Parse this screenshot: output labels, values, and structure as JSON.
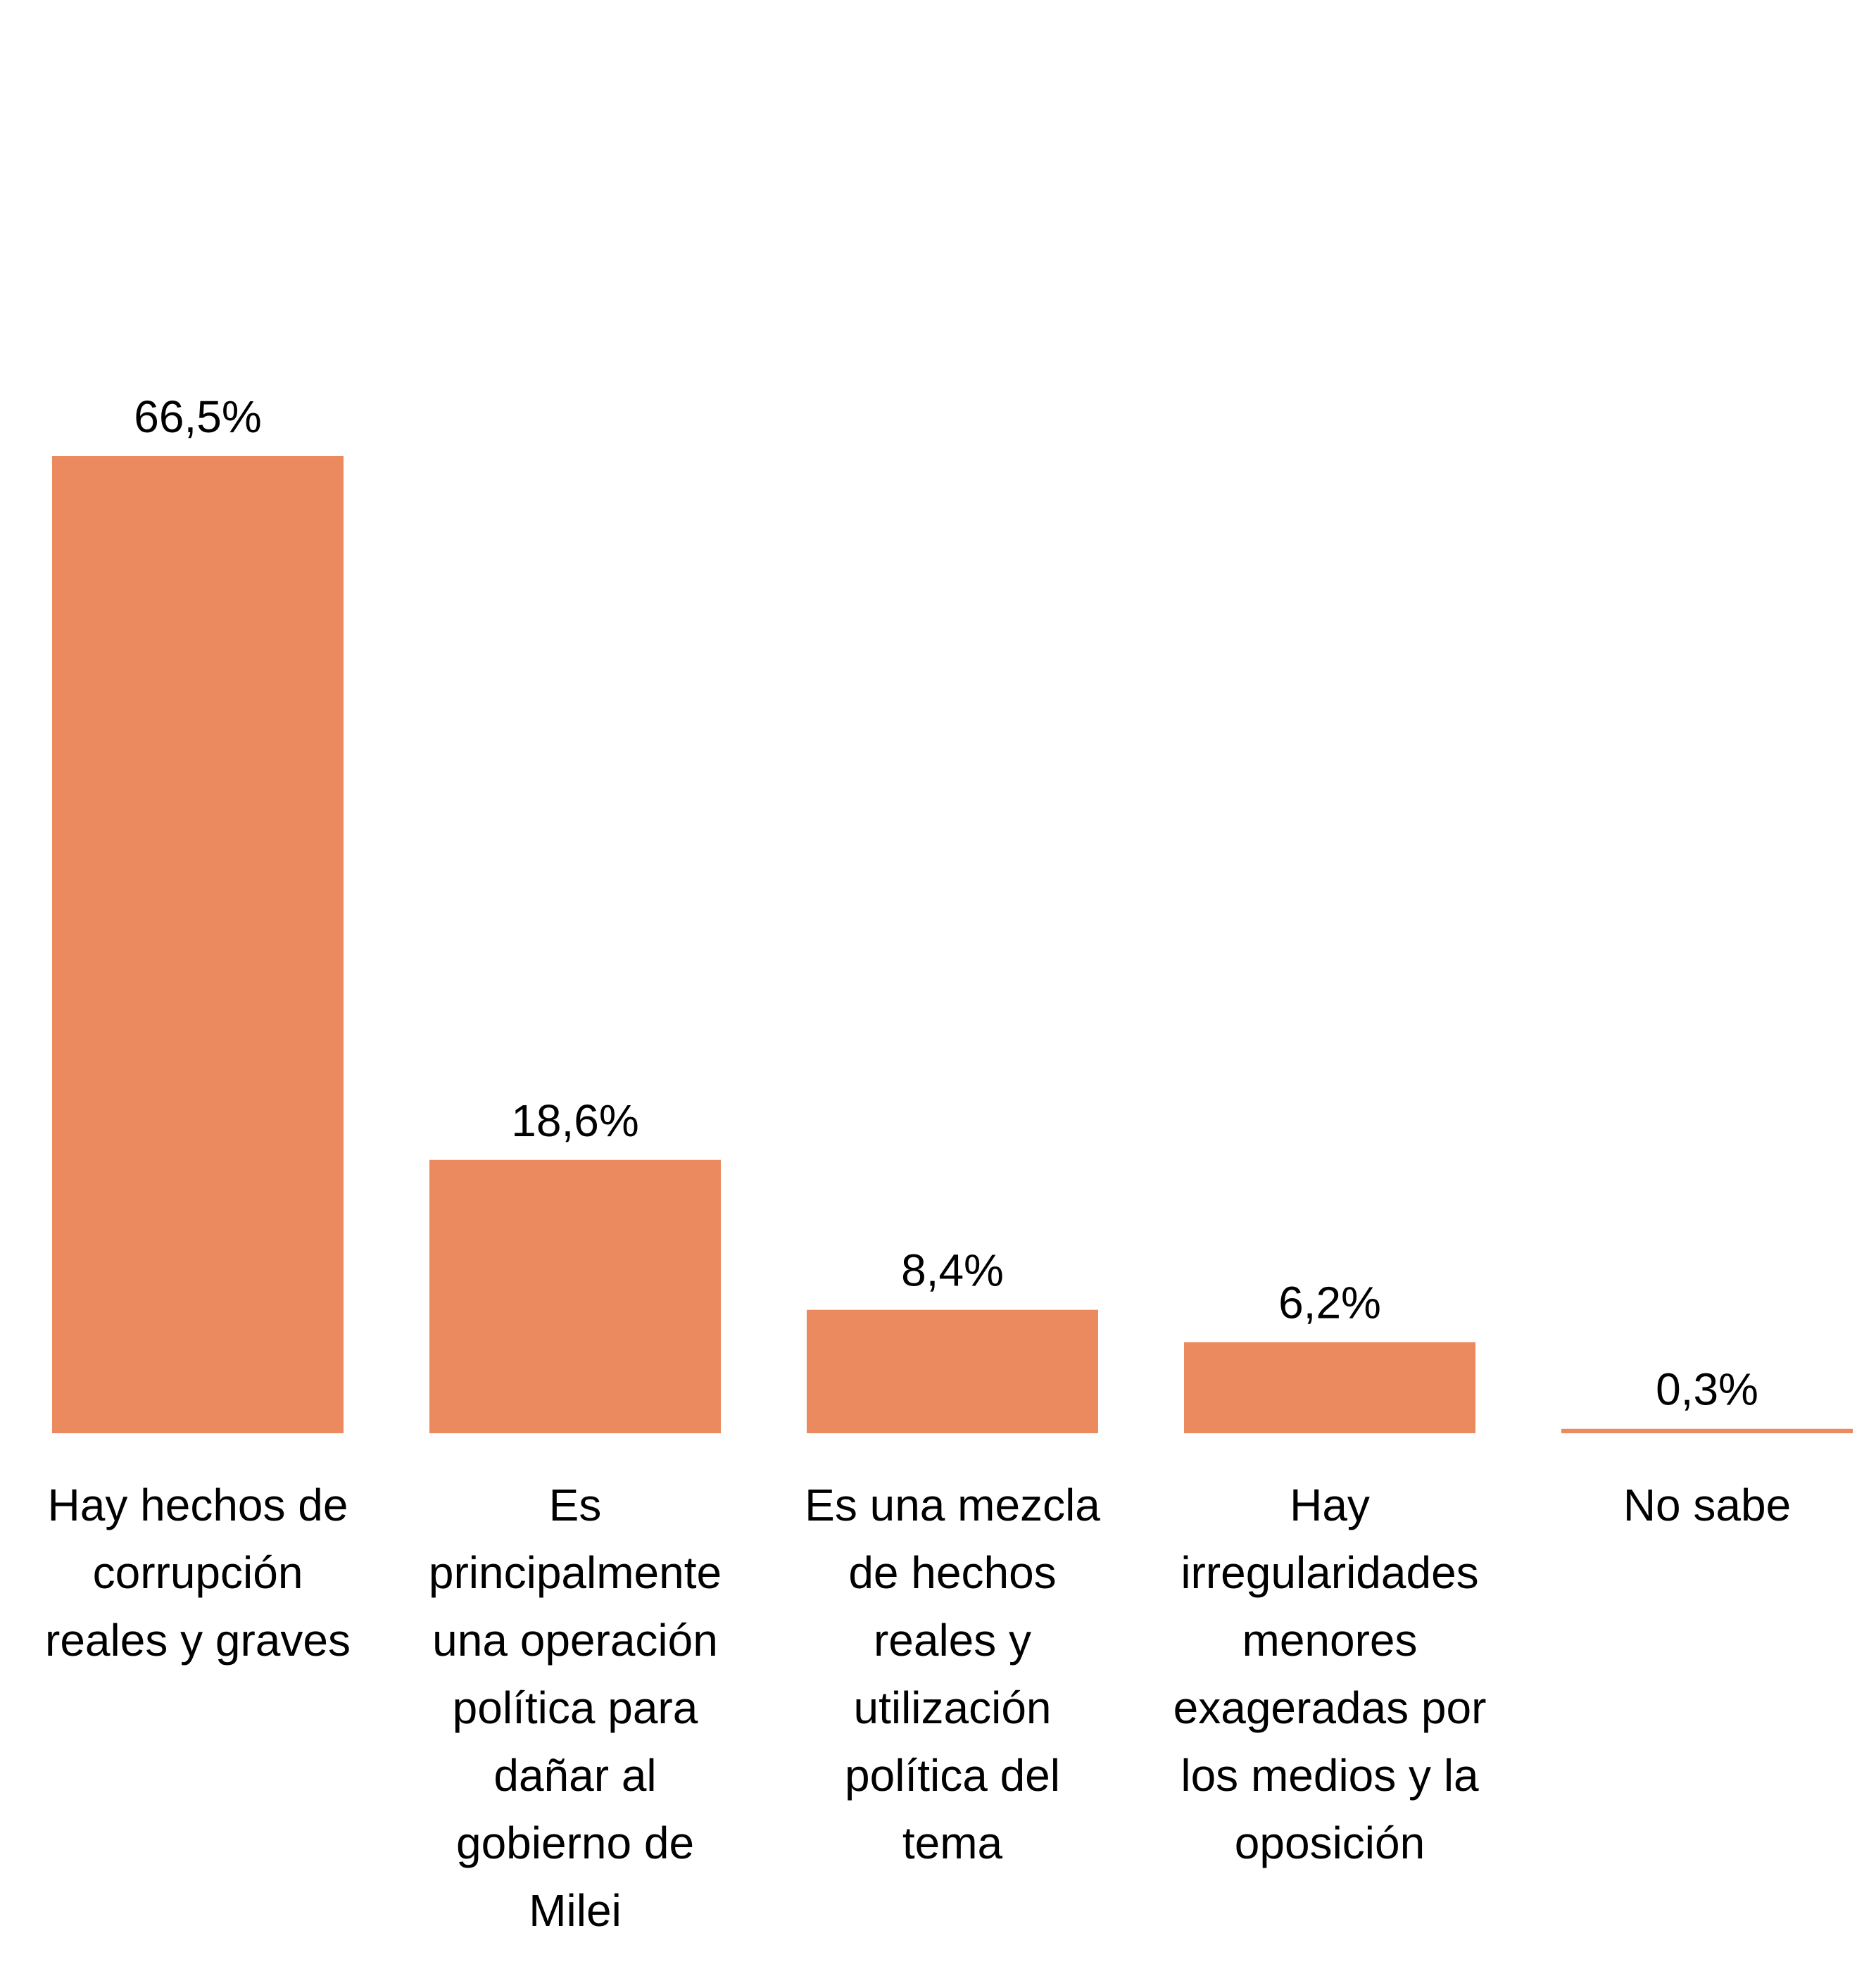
{
  "chart_data": {
    "type": "bar",
    "categories": [
      [
        "Hay hechos de",
        "corrupción",
        "reales y graves"
      ],
      [
        "Es",
        "principalmente",
        "una operación",
        "política para",
        "dañar al",
        "gobierno de",
        "Milei"
      ],
      [
        "Es una mezcla",
        "de hechos",
        "reales y",
        "utilización",
        "política del",
        "tema"
      ],
      [
        "Hay",
        "irregularidades",
        "menores",
        "exageradas por",
        "los medios y la",
        "oposición"
      ],
      [
        "No sabe"
      ]
    ],
    "values": [
      66.5,
      18.6,
      8.4,
      6.2,
      0.3
    ],
    "data_labels": [
      "66,5%",
      "18,6%",
      "8,4%",
      "6,2%",
      "0,3%"
    ],
    "unit": "%",
    "ylim": [
      0,
      66.5
    ],
    "grid": false,
    "legend": "none",
    "colors": {
      "bar": "#EB8A5F",
      "small_bar": "#7F7F7F",
      "text": "#000000"
    }
  }
}
